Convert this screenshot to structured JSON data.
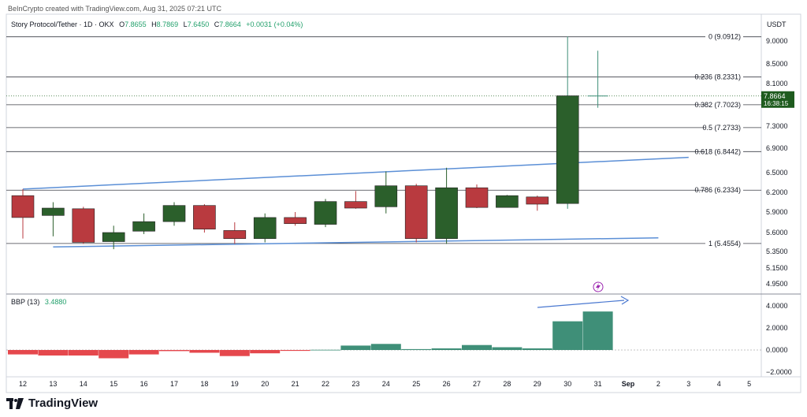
{
  "credit": "BeInCrypto created with TradingView.com, Aug 31, 2025 07:21 UTC",
  "footer": {
    "logo_text": "TradingView"
  },
  "colors": {
    "up": "#2b5f2b",
    "down": "#b93a3f",
    "hist_up": "#3f8f78",
    "hist_down": "#e5484d",
    "trend": "#5b8fd6",
    "price_tag": "#1e5b1e"
  },
  "chart_data": {
    "type": "candlestick",
    "header": {
      "symbol": "Story Protocol/Tether · 1D · OKX",
      "o_label": "O",
      "o": "7.8655",
      "h_label": "H",
      "h": "8.7869",
      "l_label": "L",
      "l": "7.6450",
      "c_label": "C",
      "c": "7.8664",
      "change": "+0.0031 (+0.04%)"
    },
    "currency": "USDT",
    "x_ticks": [
      "12",
      "13",
      "14",
      "15",
      "16",
      "17",
      "18",
      "19",
      "20",
      "21",
      "22",
      "23",
      "24",
      "25",
      "26",
      "27",
      "28",
      "29",
      "30",
      "31",
      "Sep",
      "2",
      "3",
      "4",
      "5"
    ],
    "y_ticks": [
      9.0,
      8.5,
      8.1,
      7.3,
      6.9,
      6.5,
      6.2,
      5.9,
      5.6,
      5.35,
      5.15,
      4.95
    ],
    "y_tick_labels": [
      "9.0000",
      "8.5000",
      "8.1000",
      "7.3000",
      "6.9000",
      "6.5000",
      "6.2000",
      "5.9000",
      "5.6000",
      "5.3500",
      "5.1500",
      "4.9500"
    ],
    "candles": [
      {
        "day": "12",
        "o": 6.15,
        "h": 6.25,
        "l": 5.52,
        "c": 5.82
      },
      {
        "day": "13",
        "o": 5.85,
        "h": 6.05,
        "l": 5.55,
        "c": 5.96
      },
      {
        "day": "14",
        "o": 5.95,
        "h": 5.98,
        "l": 5.45,
        "c": 5.47
      },
      {
        "day": "15",
        "o": 5.48,
        "h": 5.7,
        "l": 5.38,
        "c": 5.6
      },
      {
        "day": "16",
        "o": 5.62,
        "h": 5.88,
        "l": 5.58,
        "c": 5.76
      },
      {
        "day": "17",
        "o": 5.76,
        "h": 6.05,
        "l": 5.7,
        "c": 6.0
      },
      {
        "day": "18",
        "o": 6.0,
        "h": 6.02,
        "l": 5.6,
        "c": 5.65
      },
      {
        "day": "19",
        "o": 5.63,
        "h": 5.75,
        "l": 5.45,
        "c": 5.52
      },
      {
        "day": "20",
        "o": 5.52,
        "h": 5.88,
        "l": 5.47,
        "c": 5.82
      },
      {
        "day": "21",
        "o": 5.82,
        "h": 5.9,
        "l": 5.7,
        "c": 5.73
      },
      {
        "day": "22",
        "o": 5.72,
        "h": 6.1,
        "l": 5.68,
        "c": 6.06
      },
      {
        "day": "23",
        "o": 6.06,
        "h": 6.22,
        "l": 5.95,
        "c": 5.96
      },
      {
        "day": "24",
        "o": 5.98,
        "h": 6.52,
        "l": 5.88,
        "c": 6.3
      },
      {
        "day": "25",
        "o": 6.3,
        "h": 6.33,
        "l": 5.47,
        "c": 5.52
      },
      {
        "day": "26",
        "o": 5.52,
        "h": 6.58,
        "l": 5.45,
        "c": 6.27
      },
      {
        "day": "27",
        "o": 6.27,
        "h": 6.32,
        "l": 5.96,
        "c": 5.97
      },
      {
        "day": "28",
        "o": 5.97,
        "h": 6.16,
        "l": 5.97,
        "c": 6.15
      },
      {
        "day": "29",
        "o": 6.13,
        "h": 6.15,
        "l": 5.92,
        "c": 6.02
      },
      {
        "day": "30",
        "o": 6.03,
        "h": 9.1,
        "l": 5.95,
        "c": 7.87
      },
      {
        "day": "31",
        "o": 7.8655,
        "h": 8.7869,
        "l": 7.645,
        "c": 7.8664
      }
    ],
    "fib_levels": [
      {
        "label": "0 (9.0912)",
        "value": 9.0912
      },
      {
        "label": "0.236 (8.2331)",
        "value": 8.2331
      },
      {
        "label": "0.382 (7.7023)",
        "value": 7.7023
      },
      {
        "label": "0.5 (7.2733)",
        "value": 7.2733
      },
      {
        "label": "0.618 (6.8442)",
        "value": 6.8442
      },
      {
        "label": "0.786 (6.2334)",
        "value": 6.2334
      },
      {
        "label": "1 (5.4554)",
        "value": 5.4554
      }
    ],
    "trendlines": [
      {
        "from": {
          "day": "12",
          "price": 6.25
        },
        "to": {
          "day": "Sep 3",
          "price": 6.75
        }
      },
      {
        "from": {
          "day": "13",
          "price": 5.41
        },
        "to": {
          "day": "Sep 2",
          "price": 5.53
        }
      }
    ],
    "current_price": {
      "value": "7.8664",
      "countdown": "16:38:15"
    },
    "indicator": {
      "name": "BBP (13)",
      "value": "3.4880",
      "y_ticks": [
        4.0,
        2.0,
        0.0,
        -2.0
      ],
      "y_tick_labels": [
        "4.0000",
        "2.0000",
        "0.0000",
        "−2.0000"
      ],
      "values": [
        -0.4,
        -0.5,
        -0.5,
        -0.75,
        -0.4,
        -0.1,
        -0.25,
        -0.55,
        -0.3,
        -0.08,
        0.02,
        0.4,
        0.55,
        0.08,
        0.15,
        0.45,
        0.25,
        0.15,
        2.6,
        3.488
      ]
    }
  }
}
